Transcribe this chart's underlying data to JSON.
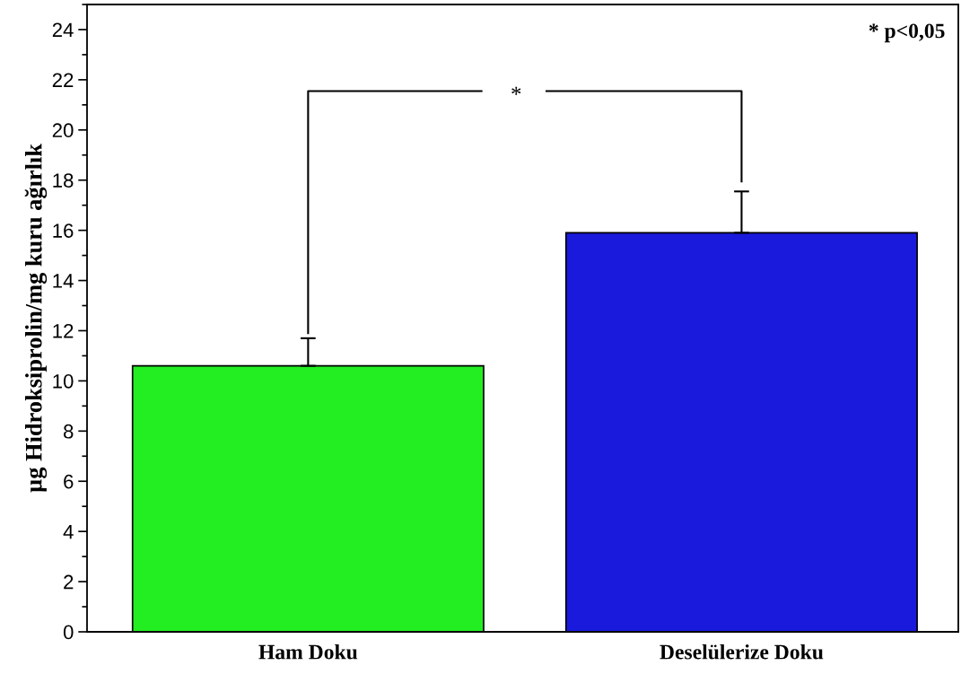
{
  "chart_data": {
    "type": "bar",
    "categories": [
      "Ham Doku",
      "Deselülerize Doku"
    ],
    "values": [
      10.6,
      15.9
    ],
    "colors": [
      "#22ee22",
      "#1a1adc"
    ],
    "errors": [
      [
        10.6,
        11.7
      ],
      [
        15.9,
        17.55
      ]
    ],
    "ylabel": "µg Hidroksiprolin/mg kuru ağırlık",
    "ylim": [
      0,
      25
    ],
    "yticks": [
      0,
      2,
      4,
      6,
      8,
      10,
      12,
      14,
      16,
      18,
      20,
      22,
      24
    ],
    "annotations": [
      "* p<0,05",
      "*"
    ],
    "grid": false
  }
}
